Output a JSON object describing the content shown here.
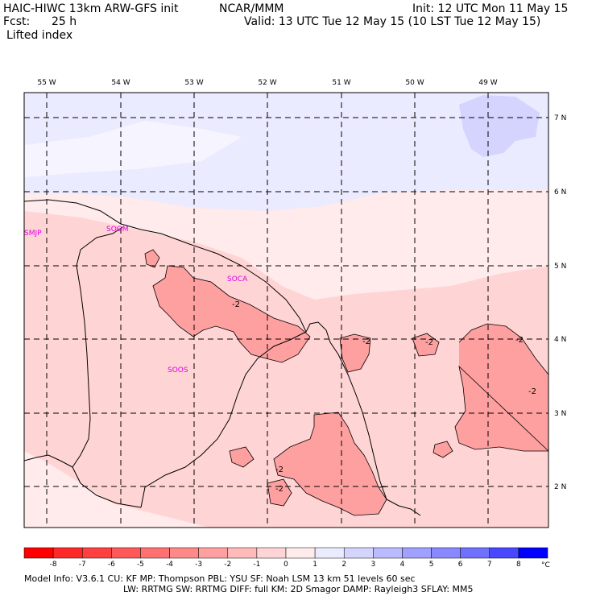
{
  "header": {
    "model": "HAIC-HIWC 13km ARW-GFS init",
    "org": "NCAR/MMM",
    "init": "Init: 12 UTC Mon 11 May 15",
    "fcst_label": "Fcst:",
    "fcst_value": "25 h",
    "valid": "Valid: 13 UTC Tue 12 May 15 (10 LST Tue 12 May 15)",
    "field": "Lifted index"
  },
  "axes": {
    "lon_labels": [
      "55 W",
      "54 W",
      "53 W",
      "52 W",
      "51 W",
      "50 W",
      "49 W"
    ],
    "lat_labels": [
      "7 N",
      "6 N",
      "5 N",
      "4 N",
      "3 N",
      "2 N"
    ]
  },
  "stations": [
    "SMJP",
    "SOGM",
    "SOCA",
    "SOOS"
  ],
  "contour_labels": [
    "-2",
    "-2",
    "-2",
    "-2",
    "-2",
    "-2",
    "-2"
  ],
  "colorbar": {
    "ticks": [
      "-8",
      "-7",
      "-6",
      "-5",
      "-4",
      "-3",
      "-2",
      "-1",
      "0",
      "1",
      "2",
      "3",
      "4",
      "5",
      "6",
      "7",
      "8"
    ],
    "unit": "°C",
    "colors": [
      "#ff0000",
      "#ff2828",
      "#ff4040",
      "#ff5858",
      "#ff7070",
      "#ff8888",
      "#ffa0a0",
      "#ffbaba",
      "#ffd4d4",
      "#ffebeb",
      "#ebebff",
      "#d4d4ff",
      "#babaff",
      "#a0a0ff",
      "#8888ff",
      "#7070ff",
      "#4848ff",
      "#0000ff"
    ]
  },
  "footer": {
    "line1": "Model Info: V3.6.1    CU: KF       MP: Thompson     PBL: YSU         SF: Noah LSM      13 km    51 levels   60 sec",
    "line2": "LW: RRTMG    SW: RRTMG   DIFF: full     KM: 2D Smagor  DAMP: Rayleigh3   SFLAY: MM5"
  }
}
